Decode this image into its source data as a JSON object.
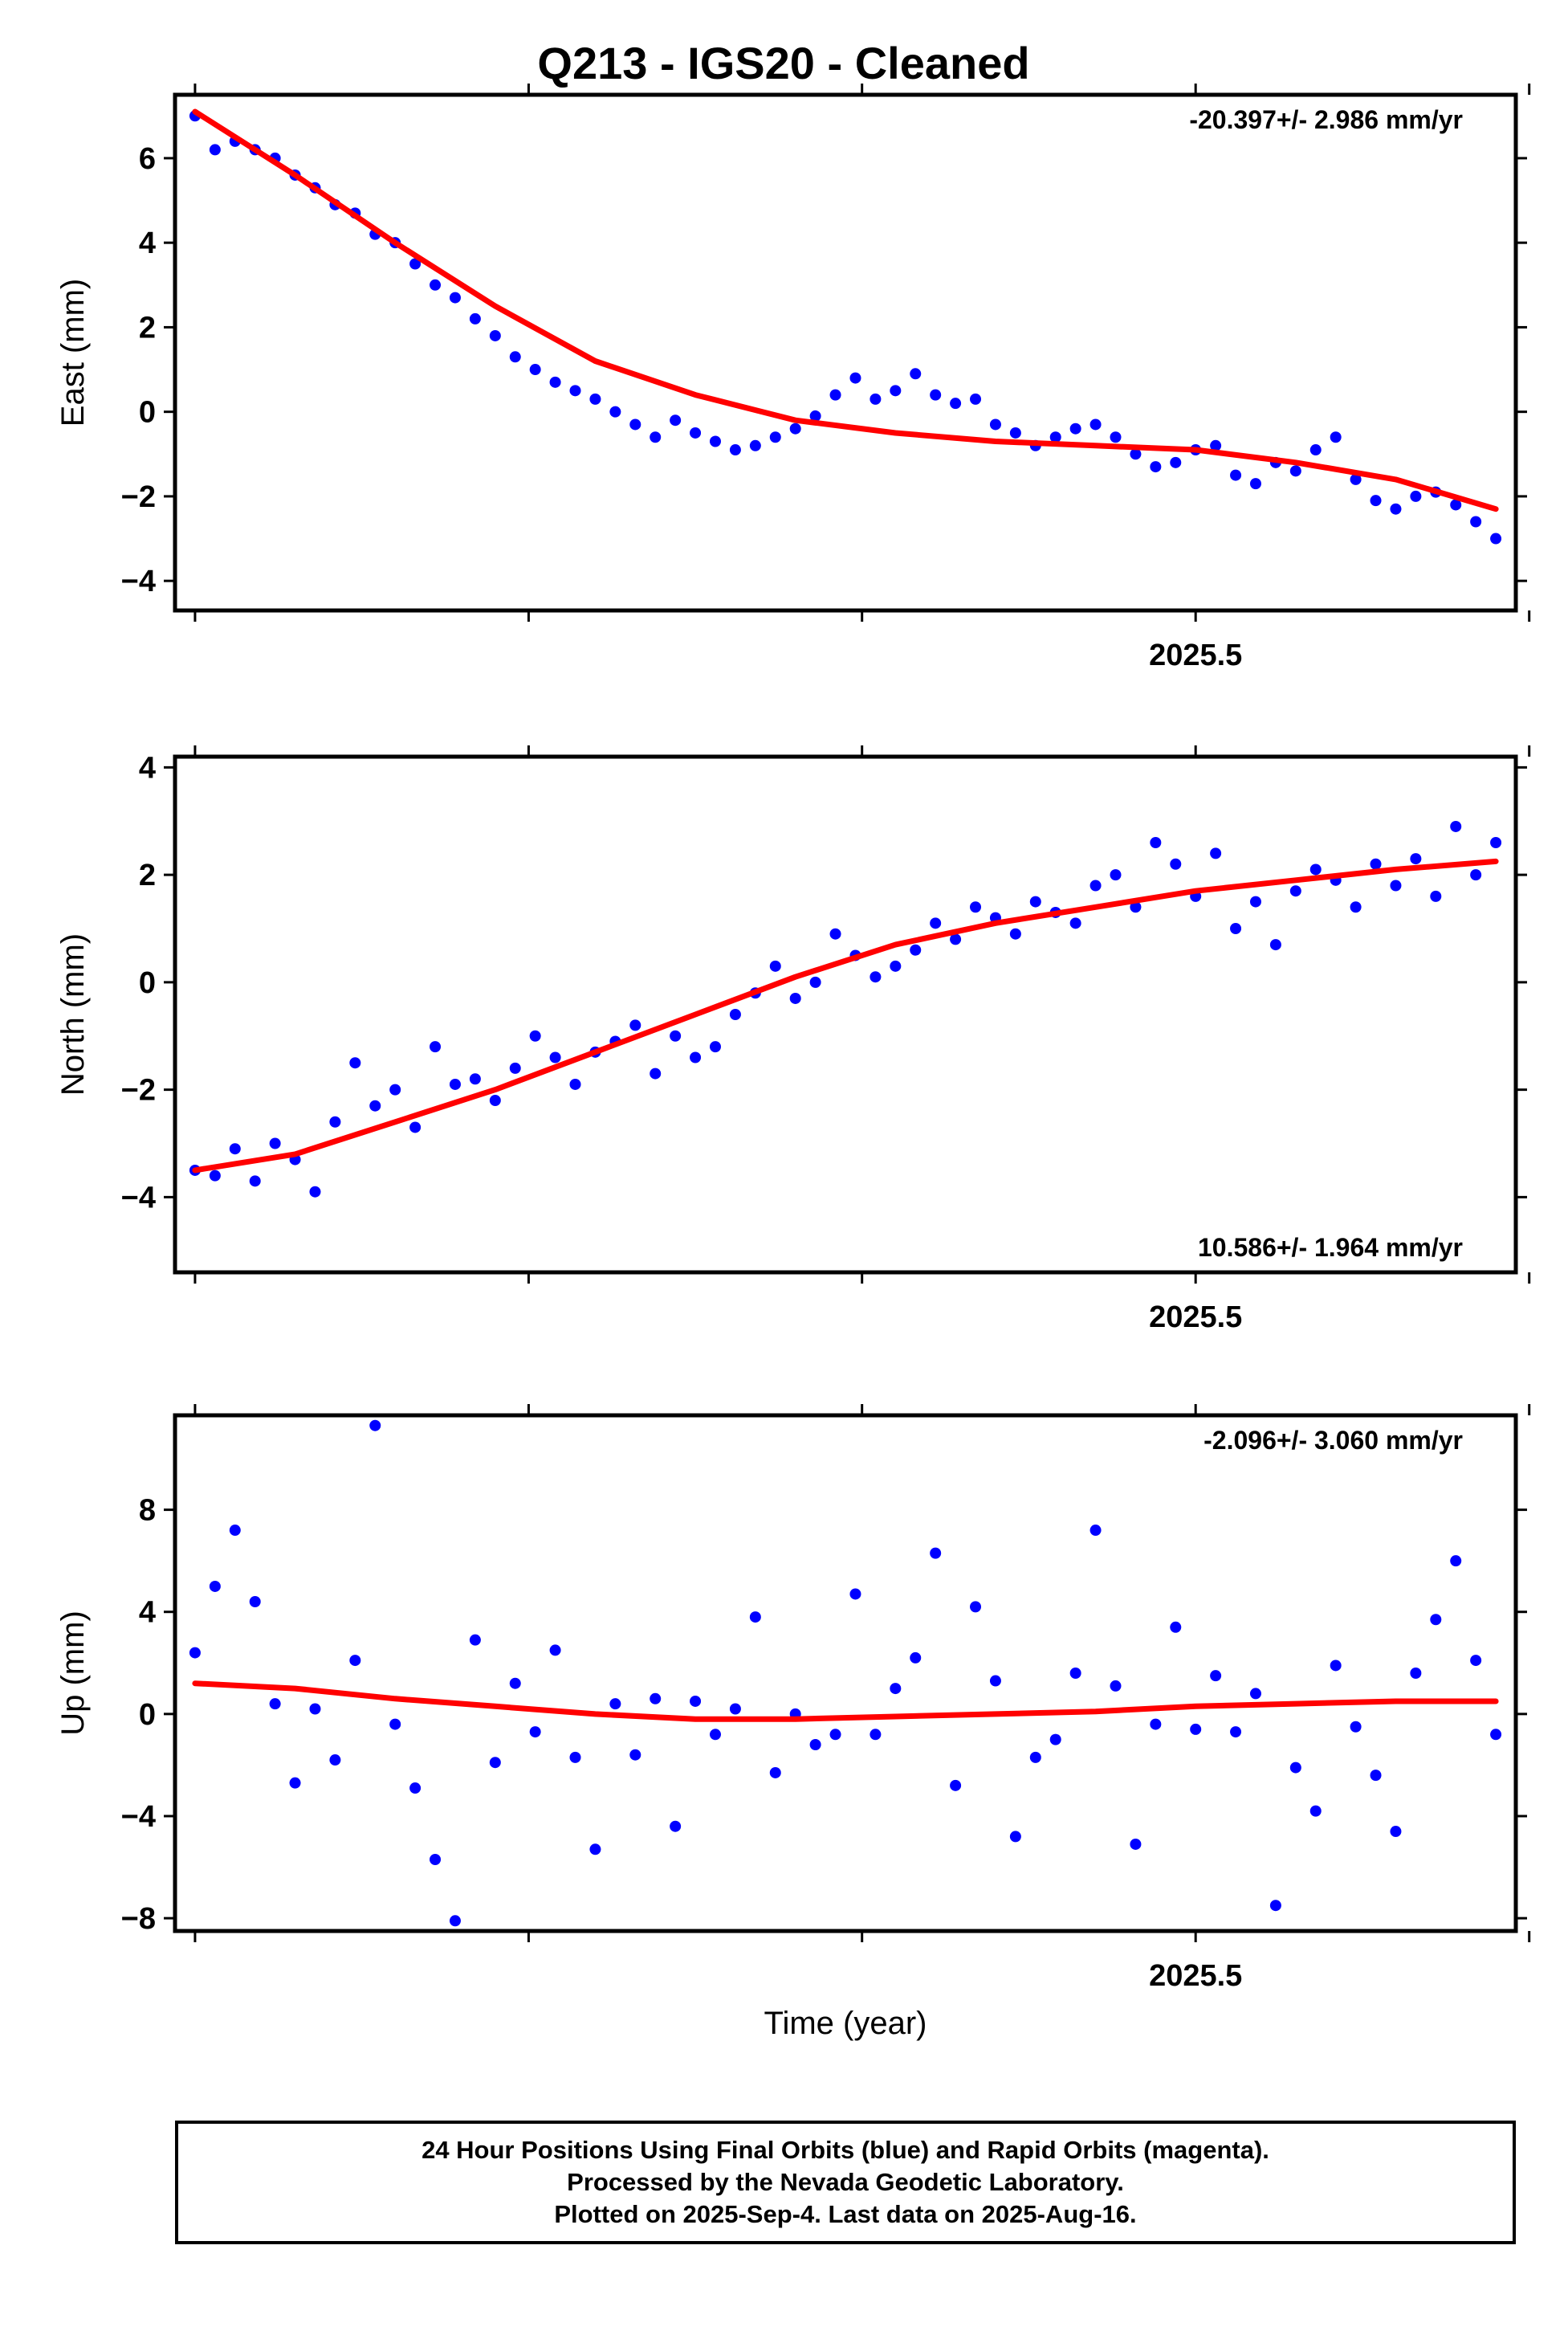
{
  "title": "Q213  - IGS20 - Cleaned",
  "footer": {
    "line1": "24 Hour Positions Using Final Orbits (blue) and Rapid Orbits (magenta).",
    "line2": "Processed by the Nevada Geodetic Laboratory.",
    "line3": "Plotted on 2025-Sep-4. Last data on 2025-Aug-16."
  },
  "colors": {
    "points": "#0000ff",
    "fit": "#ff0000",
    "axes": "#000000"
  },
  "chart_data": [
    {
      "type": "scatter",
      "ylabel": "East (mm)",
      "xlabel": "",
      "xlim": [
        2024.99,
        2025.66
      ],
      "ylim": [
        -4.7,
        7.5
      ],
      "xticks": [
        2025.0,
        2025.1667,
        2025.3333,
        2025.5,
        2025.6667
      ],
      "xtick_labels": [
        "",
        "",
        "",
        "2025.5",
        ""
      ],
      "yticks": [
        -4,
        -2,
        0,
        2,
        4,
        6
      ],
      "ytick_labels": [
        "−4",
        "−2",
        "0",
        "2",
        "4",
        "6"
      ],
      "rate": "-20.397+/- 2.986 mm/yr",
      "rate_position": "top-right",
      "series": [
        {
          "x": [
            2025.0,
            2025.01,
            2025.02,
            2025.03,
            2025.04,
            2025.05,
            2025.06,
            2025.07,
            2025.08,
            2025.09,
            2025.1,
            2025.11,
            2025.12,
            2025.13,
            2025.14,
            2025.15,
            2025.16,
            2025.17,
            2025.18,
            2025.19,
            2025.2,
            2025.21,
            2025.22,
            2025.23,
            2025.24,
            2025.25,
            2025.26,
            2025.27,
            2025.28,
            2025.29,
            2025.3,
            2025.31,
            2025.32,
            2025.33,
            2025.34,
            2025.35,
            2025.36,
            2025.37,
            2025.38,
            2025.39,
            2025.4,
            2025.41,
            2025.42,
            2025.43,
            2025.44,
            2025.45,
            2025.46,
            2025.47,
            2025.48,
            2025.49,
            2025.5,
            2025.51,
            2025.52,
            2025.53,
            2025.54,
            2025.55,
            2025.56,
            2025.57,
            2025.58,
            2025.59,
            2025.6,
            2025.61,
            2025.62,
            2025.63,
            2025.64,
            2025.65
          ],
          "y": [
            7.0,
            6.2,
            6.4,
            6.2,
            6.0,
            5.6,
            5.3,
            4.9,
            4.7,
            4.2,
            4.0,
            3.5,
            3.0,
            2.7,
            2.2,
            1.8,
            1.3,
            1.0,
            0.7,
            0.5,
            0.3,
            0.0,
            -0.3,
            -0.6,
            -0.2,
            -0.5,
            -0.7,
            -0.9,
            -0.8,
            -0.6,
            -0.4,
            -0.1,
            0.4,
            0.8,
            0.3,
            0.5,
            0.9,
            0.4,
            0.2,
            0.3,
            -0.3,
            -0.5,
            -0.8,
            -0.6,
            -0.4,
            -0.3,
            -0.6,
            -1.0,
            -1.3,
            -1.2,
            -0.9,
            -0.8,
            -1.5,
            -1.7,
            -1.2,
            -1.4,
            -0.9,
            -0.6,
            -1.6,
            -2.1,
            -2.3,
            -2.0,
            -1.9,
            -2.2,
            -2.6,
            -3.0
          ]
        },
        {
          "name": "fit",
          "x": [
            2025.0,
            2025.05,
            2025.1,
            2025.15,
            2025.2,
            2025.25,
            2025.3,
            2025.35,
            2025.4,
            2025.45,
            2025.5,
            2025.55,
            2025.6,
            2025.65
          ],
          "y": [
            7.1,
            5.6,
            4.0,
            2.5,
            1.2,
            0.4,
            -0.2,
            -0.5,
            -0.7,
            -0.8,
            -0.9,
            -1.2,
            -1.6,
            -2.3
          ]
        }
      ]
    },
    {
      "type": "scatter",
      "ylabel": "North (mm)",
      "xlabel": "",
      "xlim": [
        2024.99,
        2025.66
      ],
      "ylim": [
        -5.4,
        4.2
      ],
      "xticks": [
        2025.0,
        2025.1667,
        2025.3333,
        2025.5,
        2025.6667
      ],
      "xtick_labels": [
        "",
        "",
        "",
        "2025.5",
        ""
      ],
      "yticks": [
        -4,
        -2,
        0,
        2,
        4
      ],
      "ytick_labels": [
        "−4",
        "−2",
        "0",
        "2",
        "4"
      ],
      "rate": "10.586+/- 1.964 mm/yr",
      "rate_position": "bottom-right",
      "series": [
        {
          "x": [
            2025.0,
            2025.01,
            2025.02,
            2025.03,
            2025.04,
            2025.05,
            2025.06,
            2025.07,
            2025.08,
            2025.09,
            2025.1,
            2025.11,
            2025.12,
            2025.13,
            2025.14,
            2025.15,
            2025.16,
            2025.17,
            2025.18,
            2025.19,
            2025.2,
            2025.21,
            2025.22,
            2025.23,
            2025.24,
            2025.25,
            2025.26,
            2025.27,
            2025.28,
            2025.29,
            2025.3,
            2025.31,
            2025.32,
            2025.33,
            2025.34,
            2025.35,
            2025.36,
            2025.37,
            2025.38,
            2025.39,
            2025.4,
            2025.41,
            2025.42,
            2025.43,
            2025.44,
            2025.45,
            2025.46,
            2025.47,
            2025.48,
            2025.49,
            2025.5,
            2025.51,
            2025.52,
            2025.53,
            2025.54,
            2025.55,
            2025.56,
            2025.57,
            2025.58,
            2025.59,
            2025.6,
            2025.61,
            2025.62,
            2025.63,
            2025.64,
            2025.65
          ],
          "y": [
            -3.5,
            -3.6,
            -3.1,
            -3.7,
            -3.0,
            -3.3,
            -3.9,
            -2.6,
            -1.5,
            -2.3,
            -2.0,
            -2.7,
            -1.2,
            -1.9,
            -1.8,
            -2.2,
            -1.6,
            -1.0,
            -1.4,
            -1.9,
            -1.3,
            -1.1,
            -0.8,
            -1.7,
            -1.0,
            -1.4,
            -1.2,
            -0.6,
            -0.2,
            0.3,
            -0.3,
            0.0,
            0.9,
            0.5,
            0.1,
            0.3,
            0.6,
            1.1,
            0.8,
            1.4,
            1.2,
            0.9,
            1.5,
            1.3,
            1.1,
            1.8,
            2.0,
            1.4,
            2.6,
            2.2,
            1.6,
            2.4,
            1.0,
            1.5,
            0.7,
            1.7,
            2.1,
            1.9,
            1.4,
            2.2,
            1.8,
            2.3,
            1.6,
            2.9,
            2.0,
            2.6
          ]
        },
        {
          "name": "fit",
          "x": [
            2025.0,
            2025.05,
            2025.1,
            2025.15,
            2025.2,
            2025.25,
            2025.3,
            2025.35,
            2025.4,
            2025.45,
            2025.5,
            2025.55,
            2025.6,
            2025.65
          ],
          "y": [
            -3.5,
            -3.2,
            -2.6,
            -2.0,
            -1.3,
            -0.6,
            0.1,
            0.7,
            1.1,
            1.4,
            1.7,
            1.9,
            2.1,
            2.25
          ]
        }
      ]
    },
    {
      "type": "scatter",
      "ylabel": "Up (mm)",
      "xlabel": "Time (year)",
      "xlim": [
        2024.99,
        2025.66
      ],
      "ylim": [
        -8.5,
        11.7
      ],
      "xticks": [
        2025.0,
        2025.1667,
        2025.3333,
        2025.5,
        2025.6667
      ],
      "xtick_labels": [
        "",
        "",
        "",
        "2025.5",
        ""
      ],
      "yticks": [
        -8,
        -4,
        0,
        4,
        8
      ],
      "ytick_labels": [
        "−8",
        "−4",
        "0",
        "4",
        "8"
      ],
      "rate": "-2.096+/- 3.060 mm/yr",
      "rate_position": "top-right",
      "series": [
        {
          "x": [
            2025.0,
            2025.01,
            2025.02,
            2025.03,
            2025.04,
            2025.05,
            2025.06,
            2025.07,
            2025.08,
            2025.09,
            2025.1,
            2025.11,
            2025.12,
            2025.13,
            2025.14,
            2025.15,
            2025.16,
            2025.17,
            2025.18,
            2025.19,
            2025.2,
            2025.21,
            2025.22,
            2025.23,
            2025.24,
            2025.25,
            2025.26,
            2025.27,
            2025.28,
            2025.29,
            2025.3,
            2025.31,
            2025.32,
            2025.33,
            2025.34,
            2025.35,
            2025.36,
            2025.37,
            2025.38,
            2025.39,
            2025.4,
            2025.41,
            2025.42,
            2025.43,
            2025.44,
            2025.45,
            2025.46,
            2025.47,
            2025.48,
            2025.49,
            2025.5,
            2025.51,
            2025.52,
            2025.53,
            2025.54,
            2025.55,
            2025.56,
            2025.57,
            2025.58,
            2025.59,
            2025.6,
            2025.61,
            2025.62,
            2025.63,
            2025.64,
            2025.65
          ],
          "y": [
            2.4,
            5.0,
            7.2,
            4.4,
            0.4,
            -2.7,
            0.2,
            -1.8,
            2.1,
            11.3,
            -0.4,
            -2.9,
            -5.7,
            -8.1,
            2.9,
            -1.9,
            1.2,
            -0.7,
            2.5,
            -1.7,
            -5.3,
            0.4,
            -1.6,
            0.6,
            -4.4,
            0.5,
            -0.8,
            0.2,
            3.8,
            -2.3,
            0.0,
            -1.2,
            -0.8,
            4.7,
            -0.8,
            1.0,
            2.2,
            6.3,
            -2.8,
            4.2,
            1.3,
            -4.8,
            -1.7,
            -1.0,
            1.6,
            7.2,
            1.1,
            -5.1,
            -0.4,
            3.4,
            -0.6,
            1.5,
            -0.7,
            0.8,
            -7.5,
            -2.1,
            -3.8,
            1.9,
            -0.5,
            -2.4,
            -4.6,
            1.6,
            3.7,
            6.0,
            2.1,
            -0.8
          ]
        },
        {
          "name": "fit",
          "x": [
            2025.0,
            2025.05,
            2025.1,
            2025.15,
            2025.2,
            2025.25,
            2025.3,
            2025.35,
            2025.4,
            2025.45,
            2025.5,
            2025.55,
            2025.6,
            2025.65
          ],
          "y": [
            1.2,
            1.0,
            0.6,
            0.3,
            0.0,
            -0.2,
            -0.2,
            -0.1,
            0.0,
            0.1,
            0.3,
            0.4,
            0.5,
            0.5
          ]
        }
      ]
    }
  ]
}
